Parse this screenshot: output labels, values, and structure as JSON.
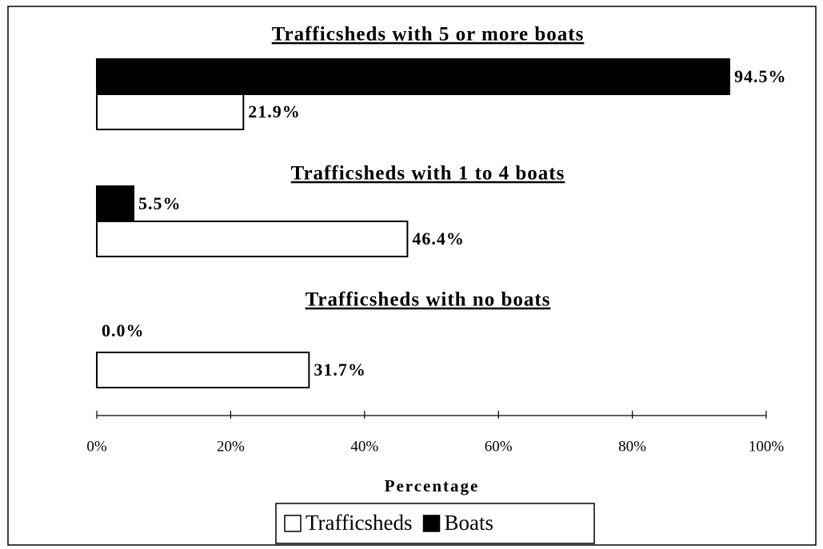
{
  "chart_data": {
    "type": "bar",
    "orientation": "horizontal",
    "categories": [
      "Trafficsheds with 5 or more boats",
      "Trafficsheds with 1 to 4 boats",
      "Trafficsheds with no boats"
    ],
    "series": [
      {
        "name": "Boats",
        "color": "#000000",
        "values": [
          94.5,
          5.5,
          0.0
        ],
        "value_labels": [
          "94.5%",
          "5.5%",
          "0.0%"
        ]
      },
      {
        "name": "Trafficsheds",
        "color": "#ffffff",
        "values": [
          21.9,
          46.4,
          31.7
        ],
        "value_labels": [
          "21.9%",
          "46.4%",
          "31.7%"
        ]
      }
    ],
    "xlim": [
      0,
      100
    ],
    "xticks": [
      {
        "value": 0,
        "label": "0%"
      },
      {
        "value": 20,
        "label": "20%"
      },
      {
        "value": 40,
        "label": "40%"
      },
      {
        "value": 60,
        "label": "60%"
      },
      {
        "value": 80,
        "label": "80%"
      },
      {
        "value": 100,
        "label": "100%"
      }
    ],
    "xlabel": "Percentage"
  }
}
